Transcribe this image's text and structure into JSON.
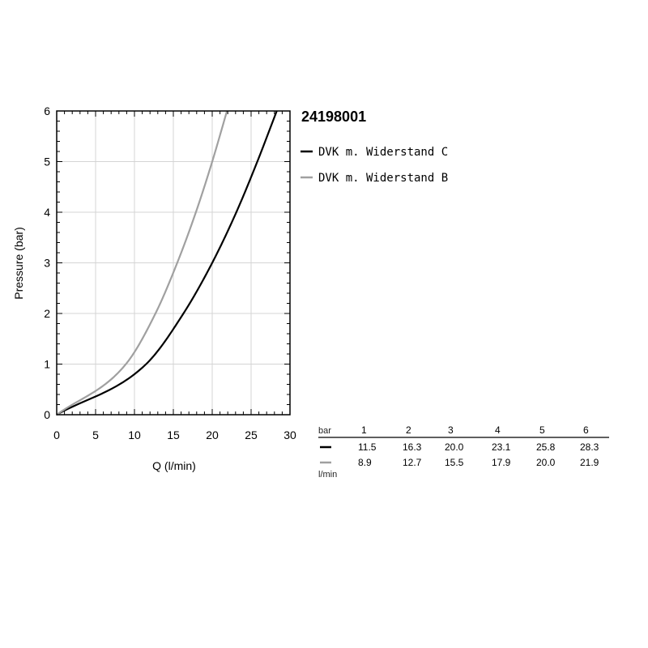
{
  "chart_data": {
    "type": "line",
    "title": "24198001",
    "xlabel": "Q (l/min)",
    "ylabel": "Pressure (bar)",
    "xlim": [
      0,
      30
    ],
    "ylim": [
      0,
      6
    ],
    "xticks": [
      0,
      5,
      10,
      15,
      20,
      25,
      30
    ],
    "yticks": [
      0,
      1,
      2,
      3,
      4,
      5,
      6
    ],
    "grid": true,
    "legend_position": "right",
    "series": [
      {
        "name": "DVK m. Widerstand C",
        "color": "#000000",
        "x": [
          0,
          11.5,
          16.3,
          20.0,
          23.1,
          25.8,
          28.3
        ],
        "y": [
          0,
          1,
          2,
          3,
          4,
          5,
          6
        ]
      },
      {
        "name": "DVK m. Widerstand B",
        "color": "#a0a0a0",
        "x": [
          0,
          8.9,
          12.7,
          15.5,
          17.9,
          20.0,
          21.9
        ],
        "y": [
          0,
          1,
          2,
          3,
          4,
          5,
          6
        ]
      }
    ],
    "table": {
      "header_label": "bar",
      "columns": [
        "1",
        "2",
        "3",
        "4",
        "5",
        "6"
      ],
      "unit_label": "l/min",
      "rows": [
        {
          "color": "#000000",
          "values": [
            "11.5",
            "16.3",
            "20.0",
            "23.1",
            "25.8",
            "28.3"
          ]
        },
        {
          "color": "#a0a0a0",
          "values": [
            "8.9",
            "12.7",
            "15.5",
            "17.9",
            "20.0",
            "21.9"
          ]
        }
      ]
    }
  }
}
